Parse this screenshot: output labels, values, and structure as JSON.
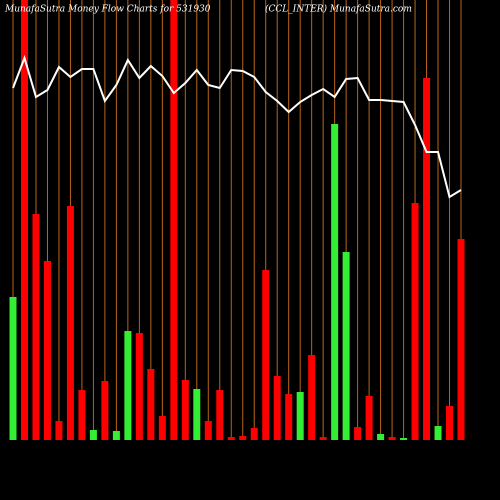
{
  "chart_data": {
    "type": "bar",
    "title": "MunafaSutra  Money Flow  Charts for 531930",
    "subtitle": "(CCL_INTER) MunafaSutra.com",
    "ylim": [
      0,
      440
    ],
    "grid_color": "#b8651b",
    "series": [
      {
        "name": "Money Flow",
        "colors": [
          "#33ee33",
          "#ff0000",
          "#ff0000",
          "#ff0000",
          "#ff0000",
          "#ff0000",
          "#ff0000",
          "#33ee33",
          "#ff0000",
          "#33ee33",
          "#33ee33",
          "#ff0000",
          "#ff0000",
          "#ff0000",
          "#ff0000",
          "#ff0000",
          "#33ee33",
          "#ff0000",
          "#ff0000",
          "#ff0000",
          "#ff0000",
          "#ff0000",
          "#ff0000",
          "#ff0000",
          "#ff0000",
          "#33ee33",
          "#ff0000",
          "#ff0000",
          "#33ee33",
          "#33ee33",
          "#ff0000",
          "#ff0000",
          "#33ee33",
          "#ff0000",
          "#33ee33",
          "#ff0000",
          "#ff0000",
          "#33ee33",
          "#ff0000",
          "#ff0000"
        ],
        "values": [
          143,
          440,
          226,
          179,
          19,
          234,
          50,
          10,
          59,
          9,
          109,
          107,
          71,
          24,
          440,
          60,
          51,
          19,
          50,
          3,
          4,
          12,
          170,
          64,
          46,
          48,
          85,
          3,
          316,
          188,
          13,
          44,
          6,
          3,
          2,
          237,
          362,
          14,
          34,
          201
        ]
      },
      {
        "name": "Price",
        "type": "line",
        "color": "#ffffff",
        "values": [
          352,
          382,
          343,
          350,
          373,
          363,
          371,
          371,
          339,
          355,
          380,
          362,
          374,
          364,
          347,
          357,
          370,
          355,
          352,
          370,
          369,
          363,
          348,
          339,
          328,
          338,
          345,
          351,
          343,
          361,
          362,
          340,
          340,
          339,
          338,
          315,
          288,
          288,
          243,
          250
        ]
      }
    ]
  }
}
